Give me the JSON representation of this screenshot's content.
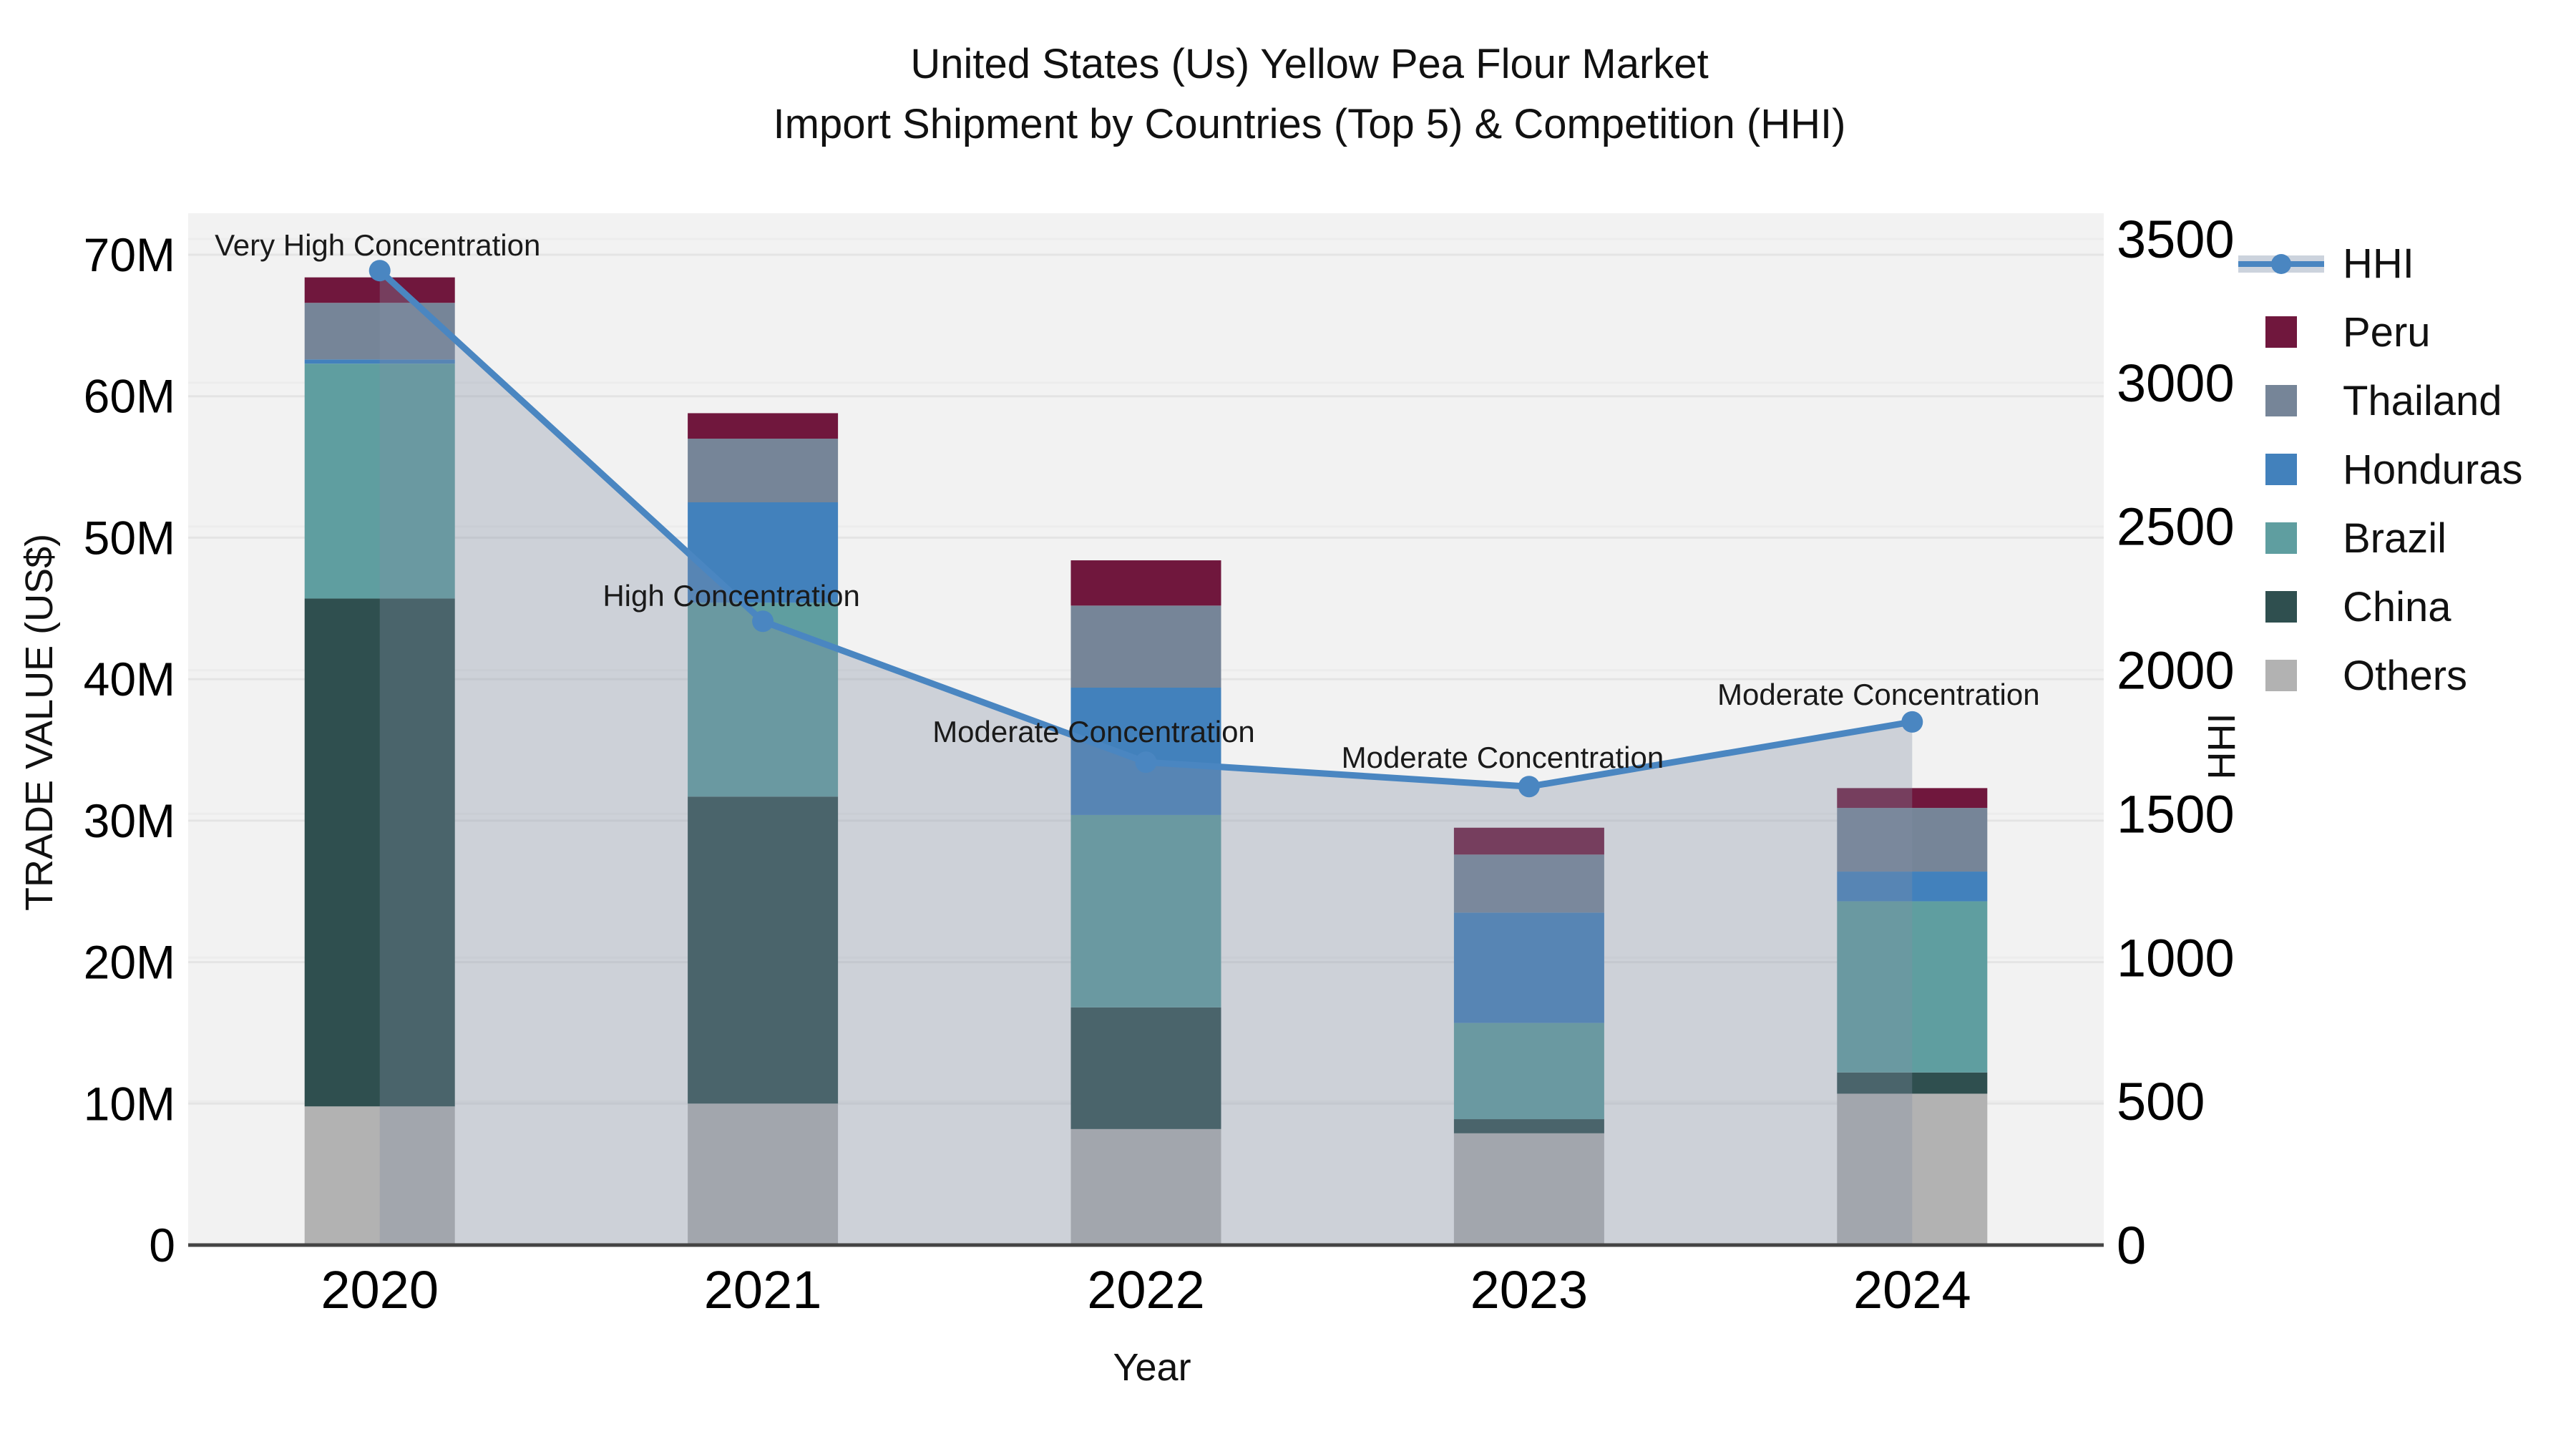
{
  "title": {
    "line1": "United States (Us) Yellow Pea Flour Market",
    "line2": "Import Shipment by Countries (Top 5) & Competition (HHI)"
  },
  "axes": {
    "left": {
      "label": "TRADE VALUE (US$)",
      "ticks": [
        "0",
        "10M",
        "20M",
        "30M",
        "40M",
        "50M",
        "60M",
        "70M"
      ],
      "tick_values": [
        0,
        10,
        20,
        30,
        40,
        50,
        60,
        70
      ]
    },
    "right": {
      "label": "HHI",
      "ticks": [
        "0",
        "500",
        "1000",
        "1500",
        "2000",
        "2500",
        "3000",
        "3500"
      ],
      "tick_values": [
        0,
        500,
        1000,
        1500,
        2000,
        2500,
        3000,
        3500
      ]
    },
    "x": {
      "label": "Year",
      "ticks": [
        "2020",
        "2021",
        "2022",
        "2023",
        "2024"
      ]
    }
  },
  "legend": {
    "items": [
      {
        "label": "HHI",
        "type": "line",
        "color": "#4a86c1",
        "band": "#ccd3dd"
      },
      {
        "label": "Peru",
        "type": "square",
        "color": "#70173d"
      },
      {
        "label": "Thailand",
        "type": "square",
        "color": "#768598"
      },
      {
        "label": "Honduras",
        "type": "square",
        "color": "#4281bc"
      },
      {
        "label": "Brazil",
        "type": "square",
        "color": "#5f9ea0"
      },
      {
        "label": "China",
        "type": "square",
        "color": "#2f4f4f"
      },
      {
        "label": "Others",
        "type": "square",
        "color": "#b2b2b2"
      }
    ]
  },
  "chart_data": {
    "type": "bar",
    "subtype": "stacked-bars-with-line-area-overlay",
    "categories": [
      "2020",
      "2021",
      "2022",
      "2023",
      "2024"
    ],
    "bar_value_unit": "million US$",
    "series": [
      {
        "name": "Others",
        "color": "#b2b2b2",
        "values": [
          9.8,
          10.0,
          8.2,
          7.9,
          10.7
        ]
      },
      {
        "name": "China",
        "color": "#2f4f4f",
        "values": [
          35.9,
          21.7,
          8.6,
          1.0,
          1.5
        ]
      },
      {
        "name": "Brazil",
        "color": "#5f9ea0",
        "values": [
          16.6,
          13.7,
          13.6,
          6.8,
          12.1
        ]
      },
      {
        "name": "Honduras",
        "color": "#4281bc",
        "values": [
          0.3,
          7.1,
          9.0,
          7.8,
          2.1
        ]
      },
      {
        "name": "Thailand",
        "color": "#768598",
        "values": [
          4.0,
          4.5,
          5.8,
          4.1,
          4.5
        ]
      },
      {
        "name": "Peru",
        "color": "#70173d",
        "values": [
          1.8,
          1.8,
          3.2,
          1.9,
          1.4
        ]
      }
    ],
    "bar_totals": [
      68.4,
      58.8,
      48.4,
      29.5,
      32.3
    ],
    "line": {
      "name": "HHI",
      "color": "#4a86c1",
      "area_fill": "rgba(130,144,163,0.33)",
      "values": [
        3390,
        2170,
        1680,
        1595,
        1820
      ]
    },
    "annotations": [
      {
        "text": "Very High Concentration",
        "year": "2020"
      },
      {
        "text": "High Concentration",
        "year": "2021"
      },
      {
        "text": "Moderate Concentration",
        "year": "2022"
      },
      {
        "text": "Moderate Concentration",
        "year": "2023"
      },
      {
        "text": "Moderate Concentration",
        "year": "2024"
      }
    ],
    "ylabel": "TRADE VALUE (US$)",
    "y2label": "HHI",
    "xlabel": "Year",
    "ylim_left": [
      0,
      70
    ],
    "ylim_right": [
      0,
      3500
    ],
    "grid": true,
    "legend_position": "right",
    "plot_bg": "#f2f2f2"
  }
}
